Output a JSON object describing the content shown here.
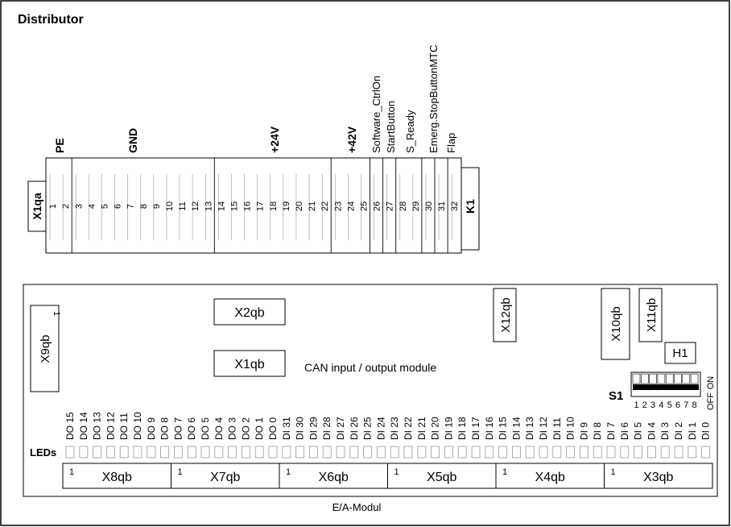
{
  "distributor": {
    "title": "Distributor",
    "connector_left": "X1qa",
    "connector_right": "K1",
    "groups": [
      {
        "label": "PE",
        "bold": true
      },
      {
        "label": "GND",
        "bold": true
      },
      {
        "label": "+24V",
        "bold": true
      },
      {
        "label": "+42V",
        "bold": true
      },
      {
        "label": "Software_CtrlOn",
        "bold": false
      },
      {
        "label": "StartButton",
        "bold": false
      },
      {
        "label": "S_Ready",
        "bold": false
      },
      {
        "label": "Emerg.StopButtonMTC",
        "bold": false
      },
      {
        "label": "Flap",
        "bold": false
      }
    ],
    "pins": [
      "1",
      "2",
      "3",
      "4",
      "5",
      "6",
      "7",
      "8",
      "9",
      "10",
      "11",
      "12",
      "13",
      "14",
      "15",
      "16",
      "17",
      "18",
      "19",
      "20",
      "21",
      "22",
      "23",
      "24",
      "25",
      "26",
      "27",
      "28",
      "29",
      "30",
      "31",
      "32"
    ]
  },
  "module": {
    "caption": "CAN input / output module",
    "footer": "E/A-Modul",
    "x9qb": "X9qb",
    "x9qb_pin": "1",
    "x2qb": "X2qb",
    "x1qb": "X1qb",
    "x12qb": "X12qb",
    "x10qb": "X10qb",
    "x11qb": "X11qb",
    "h1": "H1",
    "s1": "S1",
    "switch_on": "ON",
    "switch_off": "OFF",
    "switch_numbers": [
      "1",
      "2",
      "3",
      "4",
      "5",
      "6",
      "7",
      "8"
    ],
    "leds_label": "LEDs",
    "io_labels": [
      "DO 15",
      "DO 14",
      "DO 13",
      "DO 12",
      "DO 11",
      "DO 10",
      "DO 9",
      "DO 8",
      "DO 7",
      "DO 6",
      "DO 5",
      "DO 4",
      "DO 3",
      "DO 2",
      "DO 1",
      "DO 0",
      "DI 31",
      "DI 30",
      "DI 29",
      "DI 28",
      "DI 27",
      "DI 26",
      "DI 25",
      "DI 24",
      "DI 23",
      "DI 22",
      "DI 21",
      "DI 20",
      "DI 19",
      "DI 18",
      "DI 17",
      "DI 16",
      "DI 15",
      "DI 14",
      "DI 13",
      "DI 12",
      "DI 11",
      "DI 10",
      "DI 9",
      "DI 8",
      "DI 7",
      "DI 6",
      "DI 5",
      "DI 4",
      "DI 3",
      "DI 2",
      "DI 1",
      "DI 0"
    ],
    "bottom_connectors": [
      {
        "label": "X8qb",
        "pin": "1"
      },
      {
        "label": "X7qb",
        "pin": "1"
      },
      {
        "label": "X6qb",
        "pin": "1"
      },
      {
        "label": "X5qb",
        "pin": "1"
      },
      {
        "label": "X4qb",
        "pin": "1"
      },
      {
        "label": "X3qb",
        "pin": "1"
      }
    ]
  }
}
